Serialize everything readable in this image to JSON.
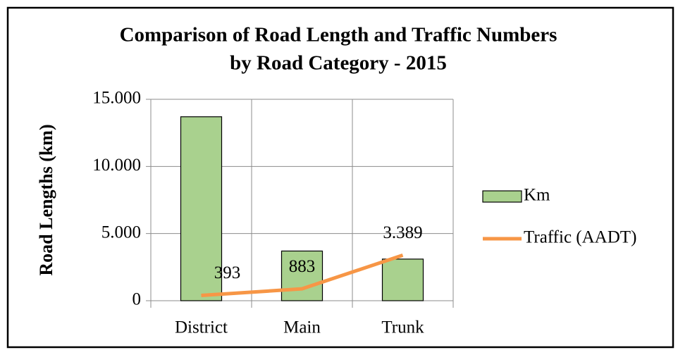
{
  "chart_data": {
    "type": "bar",
    "title": [
      "Comparison of Road Length and Traffic Numbers",
      "by Road Category - 2015"
    ],
    "y_label": "Road Lengths (km)",
    "categories": [
      "District",
      "Main",
      "Trunk"
    ],
    "series": [
      {
        "name": "Km",
        "type": "bar",
        "color": "#a9d18e",
        "values": [
          13700,
          3700,
          3100
        ]
      },
      {
        "name": "Traffic (AADT)",
        "type": "line",
        "color": "#f79646",
        "values": [
          393,
          883,
          3389
        ],
        "value_labels": [
          "393",
          "883",
          "3.389"
        ]
      }
    ],
    "ylim": [
      0,
      15000
    ],
    "yticks": [
      0,
      {
        "value": 5000,
        "label": "5.000"
      },
      {
        "value": 10000,
        "label": "10.000"
      },
      {
        "value": 15000,
        "label": "15.000"
      }
    ],
    "grid": true,
    "legend": "right"
  }
}
